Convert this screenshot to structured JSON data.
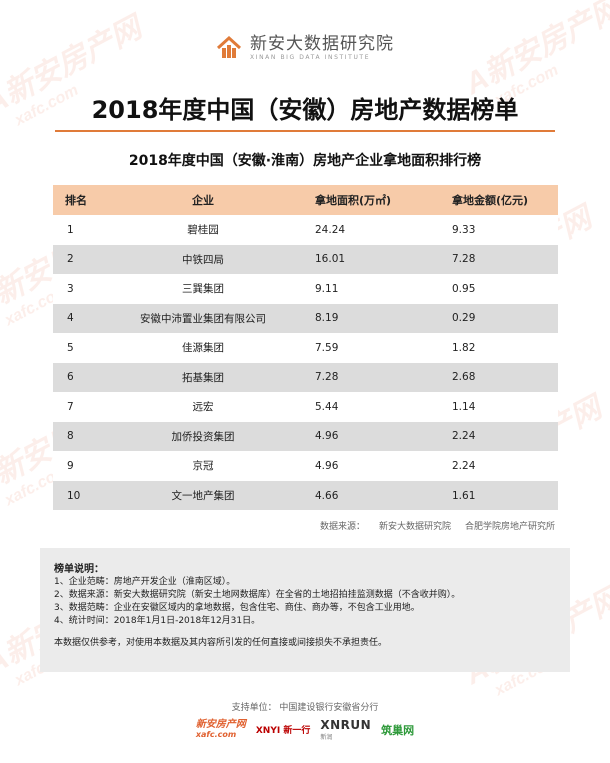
{
  "brand": {
    "name_cn": "新安大数据研究院",
    "name_en": "XINAN BIG DATA INSTITUTE"
  },
  "main_title": "2018年度中国（安徽）房地产数据榜单",
  "sub_title": "2018年度中国（安徽·淮南）房地产企业拿地面积排行榜",
  "table": {
    "headers": [
      "排名",
      "企业",
      "拿地面积(万㎡)",
      "拿地金额(亿元)"
    ],
    "rows": [
      [
        "1",
        "碧桂园",
        "24.24",
        "9.33"
      ],
      [
        "2",
        "中铁四局",
        "16.01",
        "7.28"
      ],
      [
        "3",
        "三巽集团",
        "9.11",
        "0.95"
      ],
      [
        "4",
        "安徽中沛置业集团有限公司",
        "8.19",
        "0.29"
      ],
      [
        "5",
        "佳源集团",
        "7.59",
        "1.82"
      ],
      [
        "6",
        "拓基集团",
        "7.28",
        "2.68"
      ],
      [
        "7",
        "远宏",
        "5.44",
        "1.14"
      ],
      [
        "8",
        "加侨投资集团",
        "4.96",
        "2.24"
      ],
      [
        "9",
        "京冠",
        "4.96",
        "2.24"
      ],
      [
        "10",
        "文一地产集团",
        "4.66",
        "1.61"
      ]
    ]
  },
  "source": {
    "label": "数据来源：",
    "org1": "新安大数据研究院",
    "org2": "合肥学院房地产研究所"
  },
  "notes": {
    "title": "榜单说明：",
    "lines": [
      "1、企业范畴：房地产开发企业（淮南区域）。",
      "2、数据来源：新安大数据研究院（新安土地网数据库）在全省的土地招拍挂监测数据（不含收并购）。",
      "3、数据范畴：企业在安徽区域内的拿地数据，包含住宅、商住、商办等，不包含工业用地。",
      "4、统计时间：2018年1月1日-2018年12月31日。"
    ],
    "disclaimer": "本数据仅供参考，对使用本数据及其内容所引发的任何直接或间接损失不承担责任。"
  },
  "footer": {
    "support": "支持单位：  中国建设银行安徽省分行",
    "partners": {
      "p1_top": "新安房产网",
      "p1_bottom": "xafc.com",
      "p2": "XNYI 新一行",
      "p2_sub": "新一行",
      "p3": "XNRUN",
      "p3_sub": "新润",
      "p4": "筑巢网"
    }
  },
  "watermark": {
    "big": "A新安房产网",
    "small": "xafc.com"
  },
  "colors": {
    "accent": "#e07b39",
    "header_bg": "#f7cba9",
    "row_alt": "#dcdcdc",
    "notes_bg": "#ebebeb"
  }
}
